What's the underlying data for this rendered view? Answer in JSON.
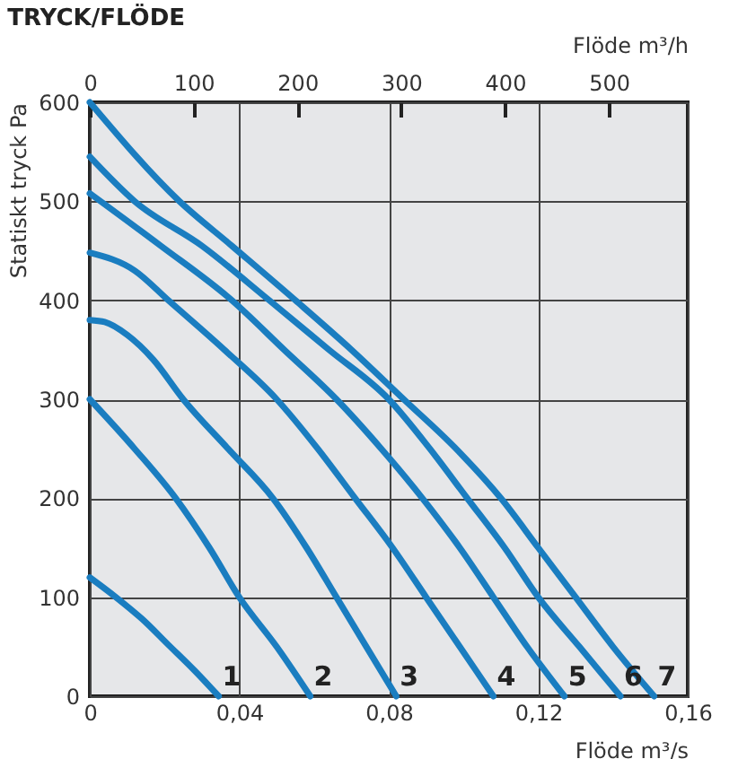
{
  "chart_data": {
    "type": "line",
    "title": "TRYCK/FLÖDE",
    "xlabel": "Flöde m³/s",
    "ylabel": "Statiskt tryck Pa",
    "x2label": "Flöde m³/h",
    "xlim": [
      0,
      0.16
    ],
    "xticks": [
      0,
      {
        "value": 0.04,
        "label": "0,04"
      },
      {
        "value": 0.08,
        "label": "0,08"
      },
      {
        "value": 0.12,
        "label": "0,12"
      },
      {
        "value": 0.16,
        "label": "0,16"
      }
    ],
    "x2lim": [
      0,
      576
    ],
    "x2ticks": [
      0,
      100,
      200,
      300,
      400,
      500
    ],
    "ylim": [
      0,
      600
    ],
    "yticks": [
      0,
      100,
      200,
      300,
      400,
      500,
      600
    ],
    "grid": true,
    "legend": false,
    "marker": "none",
    "line_style": "solid",
    "series": [
      {
        "name": "1",
        "color": "#1a7dc0",
        "x": [
          0,
          0.007,
          0.014,
          0.021,
          0.028,
          0.0345
        ],
        "values": [
          120,
          100,
          78,
          52,
          26,
          0
        ]
      },
      {
        "name": "2",
        "color": "#1a7dc0",
        "x": [
          0,
          0.012,
          0.023,
          0.032,
          0.04,
          0.05,
          0.059
        ],
        "values": [
          300,
          250,
          200,
          150,
          100,
          50,
          0
        ]
      },
      {
        "name": "3",
        "color": "#1a7dc0",
        "x": [
          0,
          0.004,
          0.01,
          0.017,
          0.025,
          0.037,
          0.049,
          0.058,
          0.066,
          0.074,
          0.082
        ],
        "values": [
          380,
          378,
          365,
          340,
          300,
          250,
          200,
          150,
          100,
          50,
          0
        ]
      },
      {
        "name": "4",
        "color": "#1a7dc0",
        "x": [
          0,
          0.012,
          0.021,
          0.036,
          0.05,
          0.061,
          0.071,
          0.081,
          0.09,
          0.099,
          0.108
        ],
        "values": [
          448,
          430,
          400,
          350,
          300,
          250,
          200,
          150,
          100,
          50,
          0
        ]
      },
      {
        "name": "5",
        "color": "#1a7dc0",
        "x": [
          0,
          0.019,
          0.038,
          0.052,
          0.066,
          0.078,
          0.089,
          0.099,
          0.108,
          0.117,
          0.127
        ],
        "values": [
          508,
          455,
          400,
          350,
          300,
          250,
          200,
          150,
          100,
          50,
          0
        ]
      },
      {
        "name": "6",
        "color": "#1a7dc0",
        "x": [
          0,
          0.012,
          0.03,
          0.048,
          0.064,
          0.08,
          0.091,
          0.101,
          0.111,
          0.12,
          0.131,
          0.142
        ],
        "values": [
          545,
          500,
          455,
          400,
          350,
          300,
          250,
          200,
          150,
          100,
          50,
          0
        ]
      },
      {
        "name": "7",
        "color": "#1a7dc0",
        "x": [
          0,
          0.024,
          0.038,
          0.055,
          0.07,
          0.084,
          0.098,
          0.11,
          0.12,
          0.13,
          0.14,
          0.151
        ],
        "values": [
          600,
          500,
          455,
          400,
          350,
          300,
          250,
          200,
          150,
          100,
          50,
          0
        ]
      }
    ]
  }
}
